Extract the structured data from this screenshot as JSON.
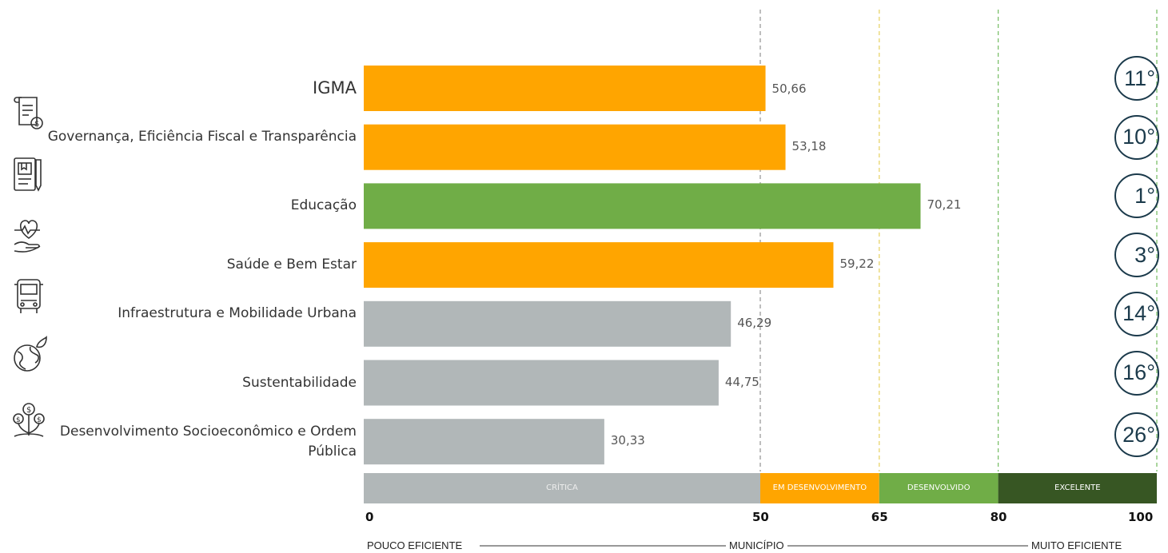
{
  "chart_data": {
    "type": "bar",
    "orientation": "horizontal",
    "xlim": [
      0,
      100
    ],
    "bars": [
      {
        "category": "IGMA",
        "value": 50.66,
        "value_label": "50,66",
        "rank": "11°",
        "color": "#FFA500"
      },
      {
        "category": "Governança, Eficiência Fiscal e Transparência",
        "value": 53.18,
        "value_label": "53,18",
        "rank": "10°",
        "color": "#FFA500"
      },
      {
        "category": "Educação",
        "value": 70.21,
        "value_label": "70,21",
        "rank": "1°",
        "color": "#70AD47"
      },
      {
        "category": "Saúde e Bem Estar",
        "value": 59.22,
        "value_label": "59,22",
        "rank": "3°",
        "color": "#FFA500"
      },
      {
        "category": "Infraestrutura e Mobilidade Urbana",
        "value": 46.29,
        "value_label": "46,29",
        "rank": "14°",
        "color": "#B1B7B8"
      },
      {
        "category": "Sustentabilidade",
        "value": 44.75,
        "value_label": "44,75",
        "rank": "16°",
        "color": "#B1B7B8"
      },
      {
        "category": "Desenvolvimento Socioeconômico e Ordem Pública",
        "value": 30.33,
        "value_label": "30,33",
        "rank": "26°",
        "color": "#B1B7B8"
      }
    ],
    "bands": [
      {
        "label": "Crítica",
        "from": 0,
        "to": 50,
        "color": "#B1B7B8"
      },
      {
        "label": "Em Desenvolvimento",
        "from": 50,
        "to": 65,
        "color": "#FFA500"
      },
      {
        "label": "Desenvolvido",
        "from": 65,
        "to": 80,
        "color": "#70AD47"
      },
      {
        "label": "Excelente",
        "from": 80,
        "to": 100,
        "color": "#375623"
      }
    ],
    "ticks": [
      {
        "value": 0,
        "label": "0"
      },
      {
        "value": 50,
        "label": "50"
      },
      {
        "value": 65,
        "label": "65"
      },
      {
        "value": 80,
        "label": "80"
      },
      {
        "value": 100,
        "label": "100"
      }
    ],
    "threshold_lines": [
      {
        "value": 50,
        "color": "#9a9a9a"
      },
      {
        "value": 65,
        "color": "#e8d46a"
      },
      {
        "value": 80,
        "color": "#7cc06a"
      },
      {
        "value": 100,
        "color": "#7cc06a"
      }
    ],
    "bottom_scale": {
      "left": "POUCO EFICIENTE",
      "center": "MUNICÍPIO",
      "right": "MUITO EFICIENTE"
    }
  },
  "icons": [
    "document-money-icon",
    "book-pen-icon",
    "heart-hand-icon",
    "bus-icon",
    "globe-leaf-icon",
    "money-plant-icon"
  ]
}
